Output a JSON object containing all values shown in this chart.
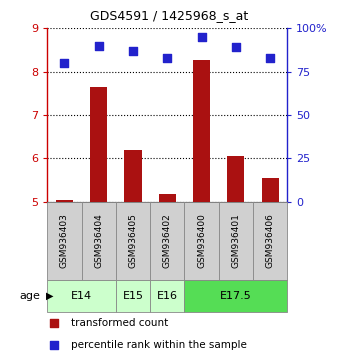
{
  "title": "GDS4591 / 1425968_s_at",
  "samples": [
    "GSM936403",
    "GSM936404",
    "GSM936405",
    "GSM936402",
    "GSM936400",
    "GSM936401",
    "GSM936406"
  ],
  "transformed_counts": [
    5.05,
    7.65,
    6.2,
    5.18,
    8.28,
    6.05,
    5.55
  ],
  "percentile_ranks": [
    80,
    90,
    87,
    83,
    95,
    89,
    83
  ],
  "age_groups": [
    {
      "label": "E14",
      "samples": [
        0,
        1
      ],
      "color": "#ccffcc"
    },
    {
      "label": "E15",
      "samples": [
        2
      ],
      "color": "#ccffcc"
    },
    {
      "label": "E16",
      "samples": [
        3
      ],
      "color": "#ccffcc"
    },
    {
      "label": "E17.5",
      "samples": [
        4,
        5,
        6
      ],
      "color": "#55dd55"
    }
  ],
  "ylim_left": [
    5,
    9
  ],
  "ylim_right": [
    0,
    100
  ],
  "yticks_left": [
    5,
    6,
    7,
    8,
    9
  ],
  "yticks_right": [
    0,
    25,
    50,
    75,
    100
  ],
  "yticklabels_right": [
    "0",
    "25",
    "50",
    "75",
    "100%"
  ],
  "bar_color": "#aa1111",
  "dot_color": "#2222cc",
  "left_tick_color": "#cc0000",
  "right_tick_color": "#2222cc",
  "bar_width": 0.5,
  "dot_size": 30,
  "sample_label_fontsize": 6.5,
  "age_label_fontsize": 8,
  "legend_fontsize": 7.5,
  "title_fontsize": 9,
  "ytick_fontsize": 8
}
